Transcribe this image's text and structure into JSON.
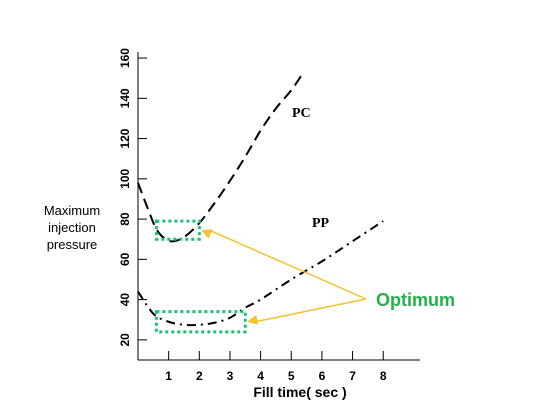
{
  "chart_data": {
    "type": "line",
    "ylabel_lines": [
      "Maximum",
      "injection",
      "pressure"
    ],
    "xlabel": "Fill time( sec )",
    "x_ticks": [
      1,
      2,
      3,
      4,
      5,
      6,
      7,
      8
    ],
    "y_ticks": [
      20,
      40,
      60,
      80,
      100,
      120,
      140,
      160
    ],
    "xlim": [
      0,
      9.2
    ],
    "ylim": [
      10,
      163
    ],
    "series": [
      {
        "name": "PC",
        "style": "dashed",
        "points": [
          [
            0,
            98
          ],
          [
            0.3,
            86
          ],
          [
            0.6,
            75
          ],
          [
            0.9,
            70
          ],
          [
            1.15,
            69
          ],
          [
            1.5,
            71
          ],
          [
            2,
            78
          ],
          [
            2.5,
            88
          ],
          [
            3,
            99
          ],
          [
            3.5,
            111
          ],
          [
            4,
            124
          ],
          [
            4.5,
            135
          ],
          [
            5,
            144
          ],
          [
            5.4,
            153
          ]
        ]
      },
      {
        "name": "PP",
        "style": "dash-dot",
        "points": [
          [
            0,
            44
          ],
          [
            0.5,
            33
          ],
          [
            1,
            29
          ],
          [
            1.5,
            27.5
          ],
          [
            2,
            27.5
          ],
          [
            2.5,
            28.5
          ],
          [
            3,
            31
          ],
          [
            3.5,
            36
          ],
          [
            4,
            40
          ],
          [
            5,
            50
          ],
          [
            6,
            59
          ],
          [
            7,
            69
          ],
          [
            8,
            79
          ]
        ]
      }
    ],
    "optimum_label": "Optimum",
    "optimum_regions": [
      {
        "x": [
          0.6,
          2.0
        ],
        "y": [
          70,
          79
        ]
      },
      {
        "x": [
          0.6,
          3.5
        ],
        "y": [
          24,
          34
        ]
      }
    ],
    "colors": {
      "axis": "#000000",
      "curve": "#000000",
      "optimum_box": "#1fbf7a",
      "optimum_text": "#22b14c",
      "arrow": "#f5c22a"
    }
  }
}
